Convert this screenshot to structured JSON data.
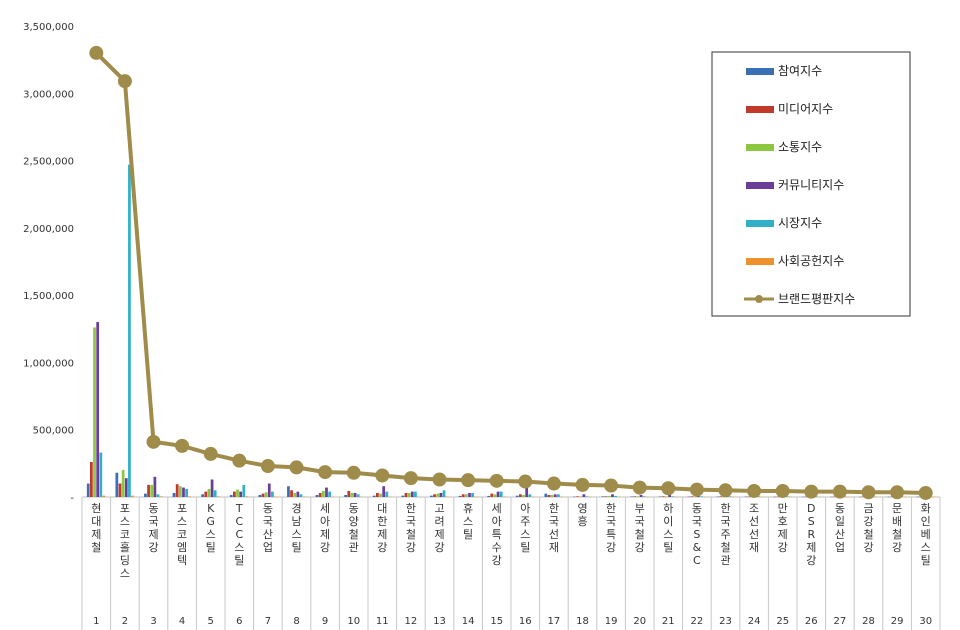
{
  "chart_data": {
    "type": "bar",
    "ylim": [
      0,
      3500000
    ],
    "yticks": [
      0,
      500000,
      1000000,
      1500000,
      2000000,
      2500000,
      3000000,
      3500000
    ],
    "ytick_labels": [
      "-",
      "500,000",
      "1,000,000",
      "1,500,000",
      "2,000,000",
      "2,500,000",
      "3,000,000",
      "3,500,000"
    ],
    "grid": false,
    "legend_position": "top-right",
    "categories": [
      "현대제철",
      "포스코홀딩스",
      "동국제강",
      "포스코엠텍",
      "KG스틸",
      "TCC스틸",
      "동국산업",
      "경남스틸",
      "세아제강",
      "동양철관",
      "대한제강",
      "한국철강",
      "고려제강",
      "휴스틸",
      "세아특수강",
      "아주스틸",
      "한국선재",
      "영흥",
      "한국특강",
      "부국철강",
      "하이스틸",
      "동국S&C",
      "한국주철관",
      "조선선재",
      "만호제강",
      "DSR제강",
      "동일산업",
      "금강철강",
      "문배철강",
      "화인베스틸"
    ],
    "ranks": [
      "1",
      "2",
      "3",
      "4",
      "5",
      "6",
      "7",
      "8",
      "9",
      "10",
      "11",
      "12",
      "13",
      "14",
      "15",
      "16",
      "17",
      "18",
      "19",
      "20",
      "21",
      "22",
      "23",
      "24",
      "25",
      "26",
      "27",
      "28",
      "29",
      "30"
    ],
    "series": [
      {
        "name": "참여지수",
        "type": "bar",
        "color": "#3a6fb5",
        "values": [
          100000,
          180000,
          25000,
          30000,
          20000,
          15000,
          15000,
          80000,
          15000,
          15000,
          10000,
          10000,
          10000,
          8000,
          8000,
          10000,
          25000,
          3000,
          5000,
          4000,
          4000,
          3000,
          3000,
          3000,
          2000,
          2000,
          2000,
          2000,
          2000,
          2000
        ]
      },
      {
        "name": "미디어지수",
        "type": "bar",
        "color": "#c0392b",
        "values": [
          260000,
          100000,
          90000,
          95000,
          40000,
          40000,
          25000,
          50000,
          30000,
          45000,
          30000,
          30000,
          20000,
          20000,
          25000,
          20000,
          15000,
          5000,
          5000,
          5000,
          5000,
          5000,
          5000,
          3000,
          3000,
          3000,
          3000,
          3000,
          3000,
          3000
        ]
      },
      {
        "name": "소통지수",
        "type": "bar",
        "color": "#8dc63f",
        "values": [
          1260000,
          200000,
          90000,
          80000,
          60000,
          55000,
          35000,
          30000,
          45000,
          30000,
          25000,
          30000,
          25000,
          20000,
          20000,
          15000,
          15000,
          5000,
          8000,
          5000,
          5000,
          5000,
          5000,
          3000,
          3000,
          3000,
          3000,
          3000,
          3000,
          3000
        ]
      },
      {
        "name": "커뮤니티지수",
        "type": "bar",
        "color": "#6a3d9a",
        "values": [
          1300000,
          140000,
          150000,
          70000,
          130000,
          40000,
          100000,
          40000,
          70000,
          30000,
          80000,
          40000,
          30000,
          30000,
          40000,
          80000,
          20000,
          20000,
          20000,
          15000,
          15000,
          10000,
          10000,
          8000,
          8000,
          8000,
          8000,
          8000,
          8000,
          8000
        ]
      },
      {
        "name": "시장지수",
        "type": "bar",
        "color": "#31b0c8",
        "values": [
          330000,
          2470000,
          20000,
          60000,
          50000,
          90000,
          40000,
          20000,
          40000,
          20000,
          40000,
          40000,
          50000,
          30000,
          40000,
          20000,
          20000,
          5000,
          8000,
          5000,
          5000,
          5000,
          5000,
          5000,
          5000,
          5000,
          5000,
          5000,
          5000,
          5000
        ]
      },
      {
        "name": "사회공헌지수",
        "type": "bar",
        "color": "#f0922b",
        "values": [
          10000,
          10000,
          5000,
          5000,
          5000,
          5000,
          3000,
          3000,
          3000,
          3000,
          3000,
          3000,
          3000,
          3000,
          3000,
          3000,
          3000,
          2000,
          2000,
          2000,
          2000,
          2000,
          2000,
          2000,
          2000,
          2000,
          2000,
          2000,
          2000,
          2000
        ]
      },
      {
        "name": "브랜드평판지수",
        "type": "line",
        "color": "#a08c4a",
        "values": [
          3300000,
          3090000,
          410000,
          380000,
          320000,
          270000,
          230000,
          220000,
          185000,
          180000,
          160000,
          140000,
          130000,
          125000,
          120000,
          115000,
          100000,
          90000,
          85000,
          70000,
          65000,
          55000,
          50000,
          45000,
          45000,
          40000,
          40000,
          35000,
          35000,
          30000
        ]
      }
    ]
  }
}
